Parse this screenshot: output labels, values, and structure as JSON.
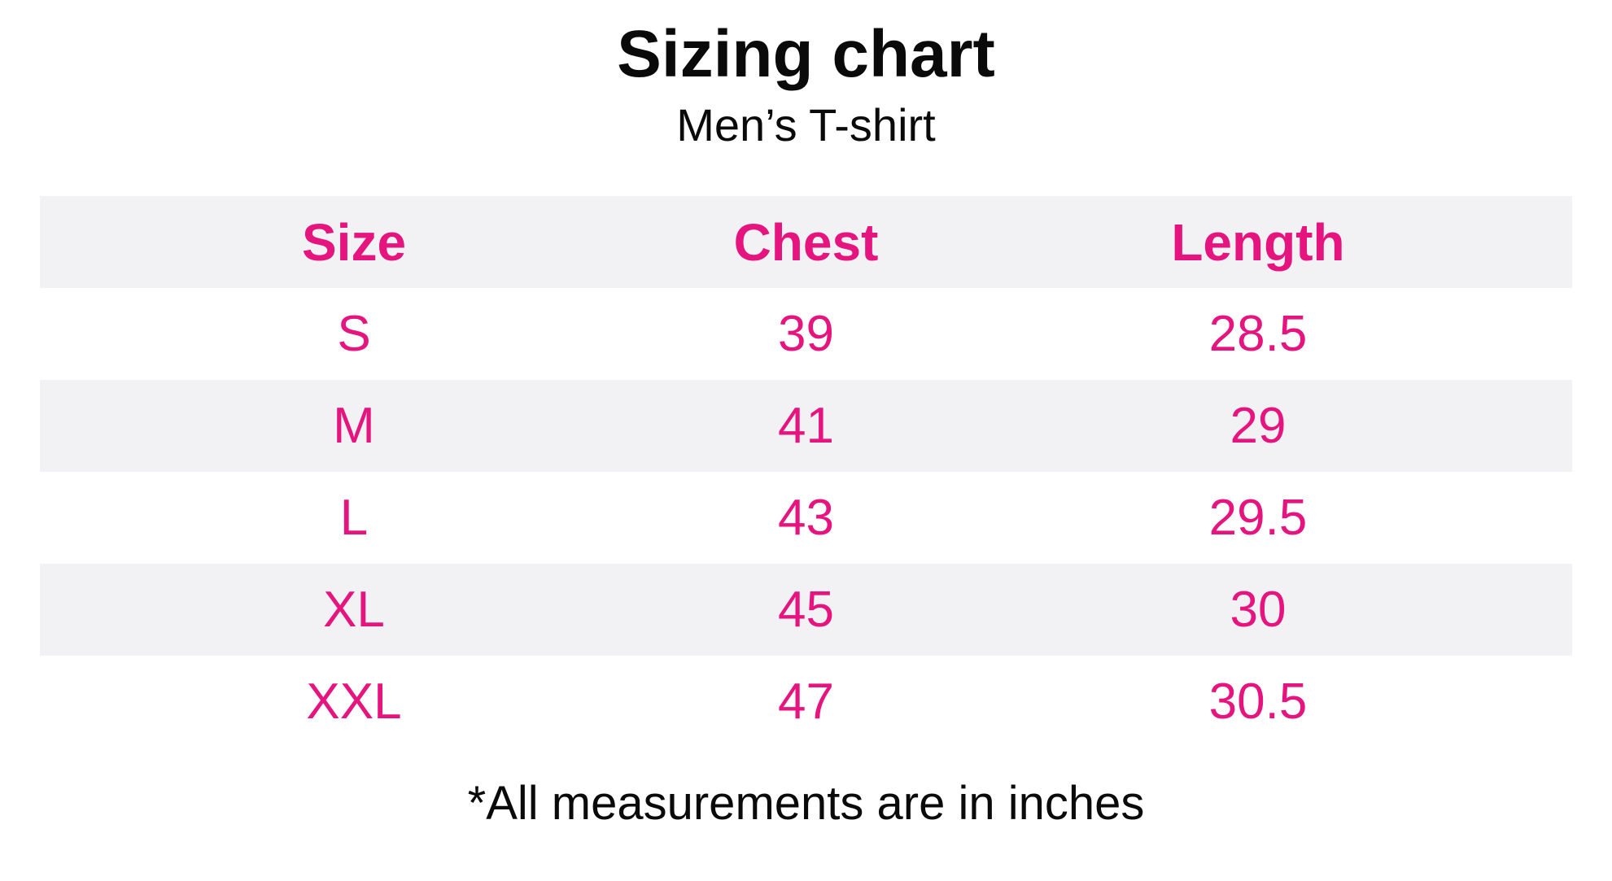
{
  "page": {
    "title": "Sizing chart",
    "subtitle": "Men’s T-shirt",
    "footnote": "*All measurements are in inches"
  },
  "colors": {
    "accent_pink": "#e5147e",
    "row_alt_gray": "#f2f2f4",
    "text_black": "#0a0a0a",
    "background": "#ffffff"
  },
  "table": {
    "headers": [
      "Size",
      "Chest",
      "Length"
    ],
    "rows": [
      {
        "cells": [
          "S",
          "39",
          "28.5"
        ]
      },
      {
        "cells": [
          "M",
          "41",
          "29"
        ]
      },
      {
        "cells": [
          "L",
          "43",
          "29.5"
        ]
      },
      {
        "cells": [
          "XL",
          "45",
          "30"
        ]
      },
      {
        "cells": [
          "XXL",
          "47",
          "30.5"
        ]
      }
    ]
  },
  "chart_data": {
    "type": "table",
    "title": "Sizing chart",
    "subtitle": "Men’s T-shirt",
    "columns": [
      "Size",
      "Chest",
      "Length"
    ],
    "rows": [
      [
        "S",
        39,
        28.5
      ],
      [
        "M",
        41,
        29
      ],
      [
        "L",
        43,
        29.5
      ],
      [
        "XL",
        45,
        30
      ],
      [
        "XXL",
        47,
        30.5
      ]
    ],
    "units": "inches",
    "note": "*All measurements are in inches",
    "layout": {
      "header_fill": "#f2f2f4",
      "alternating_rows": true,
      "text_color": "#e5147e",
      "grid": false
    }
  }
}
